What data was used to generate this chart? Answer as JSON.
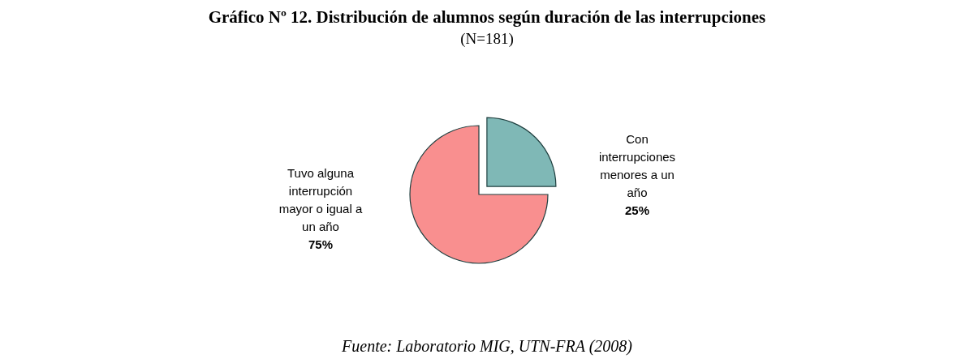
{
  "chart_data": {
    "type": "pie",
    "title": "Gráfico Nº 12. Distribución de alumnos según duración de las interrupciones",
    "subtitle": "(N=181)",
    "categories": [
      "Tuvo alguna interrupción mayor o igual a un año",
      "Con interrupciones menores a un año"
    ],
    "values": [
      75,
      25
    ],
    "value_labels": [
      "75%",
      "25%"
    ],
    "colors": [
      "#f98f8f",
      "#7fb8b6"
    ],
    "annotations": [
      "Fuente: Laboratorio MIG, UTN-FRA (2008)"
    ]
  }
}
